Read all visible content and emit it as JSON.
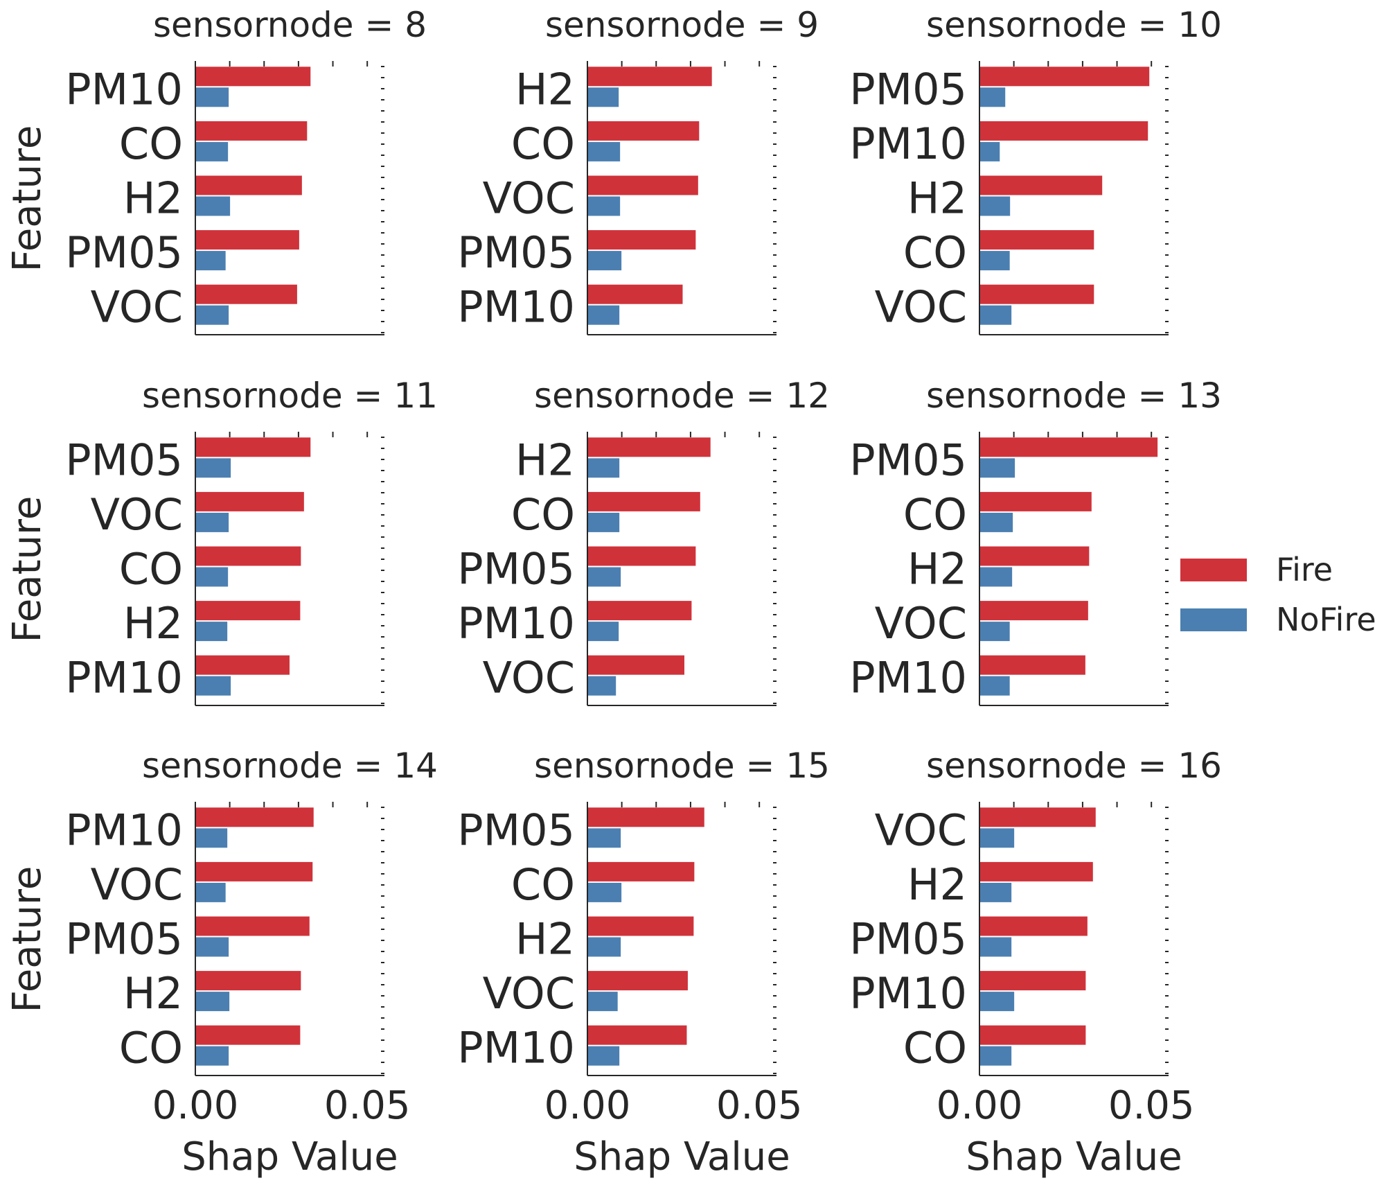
{
  "chart_data": {
    "type": "bar",
    "orientation": "horizontal",
    "xlabel": "Shap Value",
    "ylabel": "Feature",
    "xlim": [
      0,
      0.055
    ],
    "xticks": [
      {
        "value": 0.0,
        "label": "0.00"
      },
      {
        "value": 0.05,
        "label": "0.05"
      }
    ],
    "legend": {
      "placement": "right",
      "entries": [
        {
          "name": "Fire",
          "color": "#d0323a"
        },
        {
          "name": "NoFire",
          "color": "#4b7fb1"
        }
      ]
    },
    "panels": [
      {
        "title": "sensornode = 8",
        "categories": [
          "PM10",
          "CO",
          "H2",
          "PM05",
          "VOC"
        ],
        "series": [
          {
            "name": "Fire",
            "values": [
              0.0335,
              0.0325,
              0.031,
              0.0302,
              0.0296
            ]
          },
          {
            "name": "NoFire",
            "values": [
              0.0097,
              0.0095,
              0.0101,
              0.0088,
              0.0097
            ]
          }
        ]
      },
      {
        "title": "sensornode = 9",
        "categories": [
          "H2",
          "CO",
          "VOC",
          "PM05",
          "PM10"
        ],
        "series": [
          {
            "name": "Fire",
            "values": [
              0.0362,
              0.0325,
              0.0322,
              0.0315,
              0.0277
            ]
          },
          {
            "name": "NoFire",
            "values": [
              0.0091,
              0.0095,
              0.0095,
              0.0099,
              0.0093
            ]
          }
        ]
      },
      {
        "title": "sensornode = 10",
        "categories": [
          "PM05",
          "PM10",
          "H2",
          "CO",
          "VOC"
        ],
        "series": [
          {
            "name": "Fire",
            "values": [
              0.0494,
              0.049,
              0.0357,
              0.0333,
              0.0333
            ]
          },
          {
            "name": "NoFire",
            "values": [
              0.0075,
              0.0059,
              0.0089,
              0.0088,
              0.0093
            ]
          }
        ]
      },
      {
        "title": "sensornode = 11",
        "categories": [
          "PM05",
          "VOC",
          "CO",
          "H2",
          "PM10"
        ],
        "series": [
          {
            "name": "Fire",
            "values": [
              0.0335,
              0.0316,
              0.0307,
              0.0305,
              0.0274
            ]
          },
          {
            "name": "NoFire",
            "values": [
              0.0103,
              0.0097,
              0.0095,
              0.0093,
              0.0103
            ]
          }
        ]
      },
      {
        "title": "sensornode = 12",
        "categories": [
          "H2",
          "CO",
          "PM05",
          "PM10",
          "VOC"
        ],
        "series": [
          {
            "name": "Fire",
            "values": [
              0.0358,
              0.0328,
              0.0315,
              0.0303,
              0.0282
            ]
          },
          {
            "name": "NoFire",
            "values": [
              0.0093,
              0.0093,
              0.0097,
              0.0091,
              0.0083
            ]
          }
        ]
      },
      {
        "title": "sensornode = 13",
        "categories": [
          "PM05",
          "CO",
          "H2",
          "VOC",
          "PM10"
        ],
        "series": [
          {
            "name": "Fire",
            "values": [
              0.0518,
              0.0326,
              0.0319,
              0.0316,
              0.0308
            ]
          },
          {
            "name": "NoFire",
            "values": [
              0.0103,
              0.0097,
              0.0095,
              0.0088,
              0.0088
            ]
          }
        ]
      },
      {
        "title": "sensornode = 14",
        "categories": [
          "PM10",
          "VOC",
          "PM05",
          "H2",
          "CO"
        ],
        "series": [
          {
            "name": "Fire",
            "values": [
              0.0344,
              0.0341,
              0.0332,
              0.0307,
              0.0305
            ]
          },
          {
            "name": "NoFire",
            "values": [
              0.0093,
              0.0088,
              0.0097,
              0.0099,
              0.0097
            ]
          }
        ]
      },
      {
        "title": "sensornode = 15",
        "categories": [
          "PM05",
          "CO",
          "H2",
          "VOC",
          "PM10"
        ],
        "series": [
          {
            "name": "Fire",
            "values": [
              0.034,
              0.0311,
              0.0309,
              0.0292,
              0.0289
            ]
          },
          {
            "name": "NoFire",
            "values": [
              0.0097,
              0.0099,
              0.0097,
              0.0088,
              0.0093
            ]
          }
        ]
      },
      {
        "title": "sensornode = 16",
        "categories": [
          "VOC",
          "H2",
          "PM05",
          "PM10",
          "CO"
        ],
        "series": [
          {
            "name": "Fire",
            "values": [
              0.0338,
              0.033,
              0.0314,
              0.0309,
              0.0309
            ]
          },
          {
            "name": "NoFire",
            "values": [
              0.0101,
              0.0093,
              0.0093,
              0.0101,
              0.0093
            ]
          }
        ]
      }
    ]
  }
}
